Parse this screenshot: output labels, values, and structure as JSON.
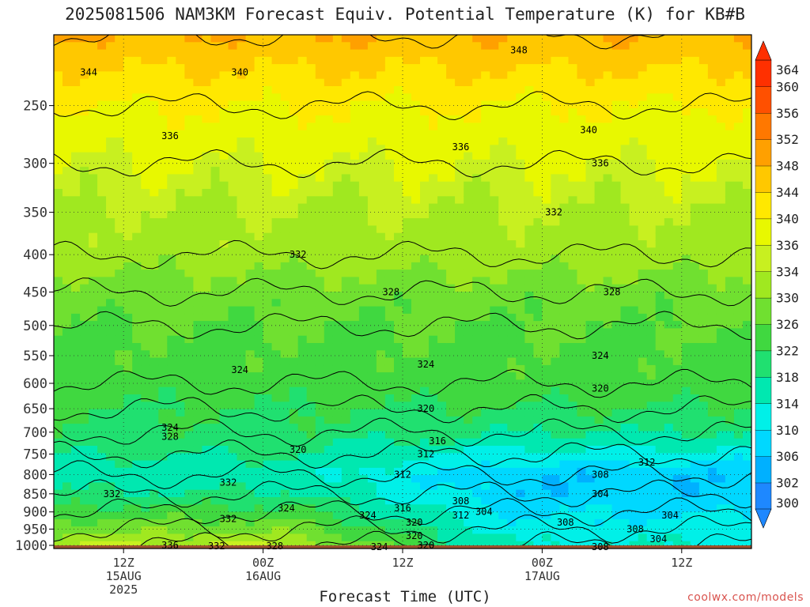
{
  "title": "2025081506 NAM3KM Forecast Equiv. Potential Temperature (K) for KB#B",
  "watermark": "coolwx.com/models",
  "chart_data": {
    "type": "heatmap",
    "title": "2025081506 NAM3KM Forecast Equiv. Potential Temperature (K) for KB#B",
    "xlabel": "Forecast Time (UTC)",
    "ylabel": "",
    "x_ticks": [
      {
        "hour": 6,
        "lines": [
          "12Z",
          "15AUG",
          "2025"
        ]
      },
      {
        "hour": 18,
        "lines": [
          "00Z",
          "16AUG"
        ]
      },
      {
        "hour": 30,
        "lines": [
          "12Z"
        ]
      },
      {
        "hour": 42,
        "lines": [
          "00Z",
          "17AUG"
        ]
      },
      {
        "hour": 54,
        "lines": [
          "12Z"
        ]
      }
    ],
    "xlim": [
      0,
      60
    ],
    "y_ticks": [
      250,
      300,
      350,
      400,
      450,
      500,
      550,
      600,
      650,
      700,
      750,
      800,
      850,
      900,
      950,
      1000
    ],
    "ylim": [
      1010,
      200
    ],
    "colorbar": {
      "levels": [
        300,
        302,
        306,
        310,
        314,
        318,
        322,
        326,
        330,
        334,
        336,
        340,
        344,
        348,
        352,
        356,
        360,
        364
      ],
      "colors": [
        "#1e88ff",
        "#00b0ff",
        "#00d8ff",
        "#00f0e8",
        "#00e8b0",
        "#20e070",
        "#40d840",
        "#70e030",
        "#a0e820",
        "#c8f020",
        "#e8f800",
        "#ffe800",
        "#ffc800",
        "#ffa000",
        "#ff7800",
        "#ff5000",
        "#ff3000"
      ]
    },
    "theta_e_profile": [
      {
        "pressure": 1000,
        "value": 326
      },
      {
        "pressure": 950,
        "value": 322
      },
      {
        "pressure": 900,
        "value": 318
      },
      {
        "pressure": 850,
        "value": 314
      },
      {
        "pressure": 800,
        "value": 312
      },
      {
        "pressure": 750,
        "value": 316
      },
      {
        "pressure": 700,
        "value": 320
      },
      {
        "pressure": 650,
        "value": 322
      },
      {
        "pressure": 600,
        "value": 324
      },
      {
        "pressure": 500,
        "value": 326
      },
      {
        "pressure": 450,
        "value": 328
      },
      {
        "pressure": 400,
        "value": 332
      },
      {
        "pressure": 300,
        "value": 336
      },
      {
        "pressure": 250,
        "value": 340
      },
      {
        "pressure": 200,
        "value": 348
      }
    ],
    "contour_labels": [
      {
        "text": "348",
        "hour": 40,
        "pressure": 210
      },
      {
        "text": "344",
        "hour": 3,
        "pressure": 225
      },
      {
        "text": "340",
        "hour": 16,
        "pressure": 225
      },
      {
        "text": "340",
        "hour": 46,
        "pressure": 270
      },
      {
        "text": "336",
        "hour": 10,
        "pressure": 275
      },
      {
        "text": "336",
        "hour": 35,
        "pressure": 285
      },
      {
        "text": "336",
        "hour": 47,
        "pressure": 300
      },
      {
        "text": "332",
        "hour": 43,
        "pressure": 350
      },
      {
        "text": "332",
        "hour": 21,
        "pressure": 400
      },
      {
        "text": "328",
        "hour": 29,
        "pressure": 450
      },
      {
        "text": "328",
        "hour": 48,
        "pressure": 450
      },
      {
        "text": "324",
        "hour": 16,
        "pressure": 575
      },
      {
        "text": "324",
        "hour": 32,
        "pressure": 565
      },
      {
        "text": "324",
        "hour": 47,
        "pressure": 550
      },
      {
        "text": "320",
        "hour": 47,
        "pressure": 610
      },
      {
        "text": "320",
        "hour": 32,
        "pressure": 650
      },
      {
        "text": "324",
        "hour": 10,
        "pressure": 690
      },
      {
        "text": "328",
        "hour": 10,
        "pressure": 710
      },
      {
        "text": "320",
        "hour": 21,
        "pressure": 740
      },
      {
        "text": "316",
        "hour": 33,
        "pressure": 720
      },
      {
        "text": "312",
        "hour": 32,
        "pressure": 750
      },
      {
        "text": "312",
        "hour": 51,
        "pressure": 770
      },
      {
        "text": "312",
        "hour": 30,
        "pressure": 800
      },
      {
        "text": "308",
        "hour": 47,
        "pressure": 800
      },
      {
        "text": "332",
        "hour": 5,
        "pressure": 850
      },
      {
        "text": "332",
        "hour": 15,
        "pressure": 820
      },
      {
        "text": "304",
        "hour": 47,
        "pressure": 850
      },
      {
        "text": "308",
        "hour": 35,
        "pressure": 870
      },
      {
        "text": "304",
        "hour": 37,
        "pressure": 900
      },
      {
        "text": "312",
        "hour": 35,
        "pressure": 910
      },
      {
        "text": "316",
        "hour": 30,
        "pressure": 890
      },
      {
        "text": "324",
        "hour": 20,
        "pressure": 890
      },
      {
        "text": "324",
        "hour": 27,
        "pressure": 910
      },
      {
        "text": "332",
        "hour": 15,
        "pressure": 920
      },
      {
        "text": "320",
        "hour": 31,
        "pressure": 930
      },
      {
        "text": "304",
        "hour": 53,
        "pressure": 910
      },
      {
        "text": "308",
        "hour": 44,
        "pressure": 930
      },
      {
        "text": "308",
        "hour": 50,
        "pressure": 950
      },
      {
        "text": "320",
        "hour": 31,
        "pressure": 970
      },
      {
        "text": "304",
        "hour": 52,
        "pressure": 980
      },
      {
        "text": "336",
        "hour": 10,
        "pressure": 1000
      },
      {
        "text": "332",
        "hour": 14,
        "pressure": 1002
      },
      {
        "text": "328",
        "hour": 19,
        "pressure": 1003
      },
      {
        "text": "324",
        "hour": 28,
        "pressure": 1005
      },
      {
        "text": "320",
        "hour": 32,
        "pressure": 1000
      },
      {
        "text": "308",
        "hour": 47,
        "pressure": 1005
      }
    ],
    "terrain": {
      "below_pressure": 1000,
      "color": "#a0522d"
    }
  }
}
